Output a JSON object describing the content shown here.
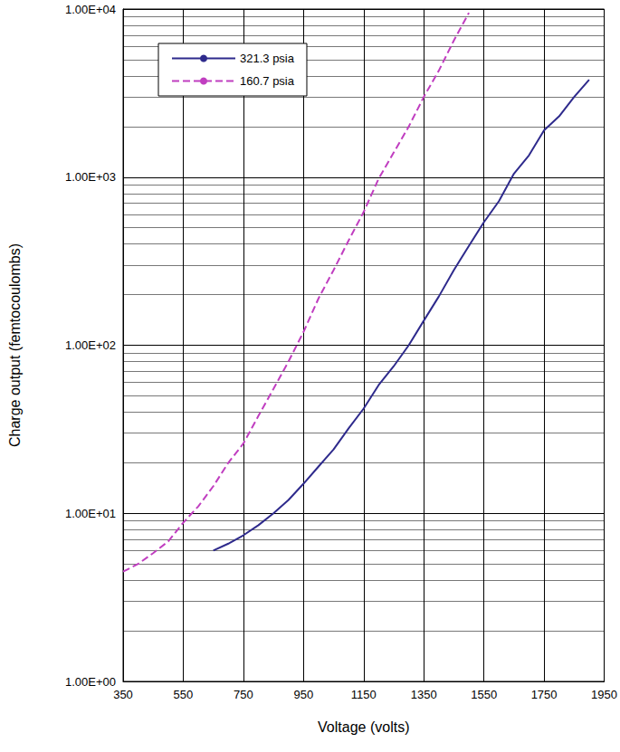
{
  "chart_data": {
    "type": "line",
    "x_label": "Voltage (volts)",
    "y_label": "Charge output (femtocoulombs)",
    "log": "y",
    "grid": true,
    "legend": "upper left",
    "x": [
      350,
      400,
      450,
      500,
      550,
      600,
      650,
      700,
      750,
      800,
      850,
      900,
      950,
      1000,
      1050,
      1100,
      1150,
      1200,
      1250,
      1300,
      1350,
      1400,
      1450,
      1500,
      1550,
      1600,
      1650,
      1700,
      1750,
      1800,
      1850,
      1900
    ],
    "series": [
      {
        "name": "321.3 psia",
        "color": "#2e2a8c",
        "line_style": "solid",
        "values": [
          null,
          null,
          null,
          null,
          null,
          null,
          6,
          6.6,
          7.4,
          8.5,
          10,
          12,
          15,
          19,
          24,
          32,
          42,
          58,
          75,
          100,
          140,
          195,
          280,
          390,
          540,
          720,
          1050,
          1350,
          1900,
          2300,
          3000,
          3800
        ]
      },
      {
        "name": "160.7 psia",
        "color": "#c03ec0",
        "line_style": "dashed",
        "values": [
          4.5,
          5,
          5.8,
          6.8,
          8.8,
          11,
          14.5,
          20,
          26,
          38,
          55,
          80,
          120,
          190,
          280,
          420,
          620,
          980,
          1400,
          2000,
          3000,
          4300,
          6500,
          9500,
          null,
          null,
          null,
          null,
          null,
          null,
          null,
          null
        ]
      }
    ],
    "xlim": [
      350,
      1950
    ],
    "xticks": [
      350,
      550,
      750,
      950,
      1150,
      1350,
      1550,
      1750,
      1950
    ],
    "ylim": [
      1,
      10000
    ],
    "yticks": [
      {
        "value": 1,
        "label": "1.00E+00"
      },
      {
        "value": 10,
        "label": "1.00E+01"
      },
      {
        "value": 100,
        "label": "1.00E+02"
      },
      {
        "value": 1000,
        "label": "1.00E+03"
      },
      {
        "value": 10000,
        "label": "1.00E+04"
      }
    ]
  }
}
